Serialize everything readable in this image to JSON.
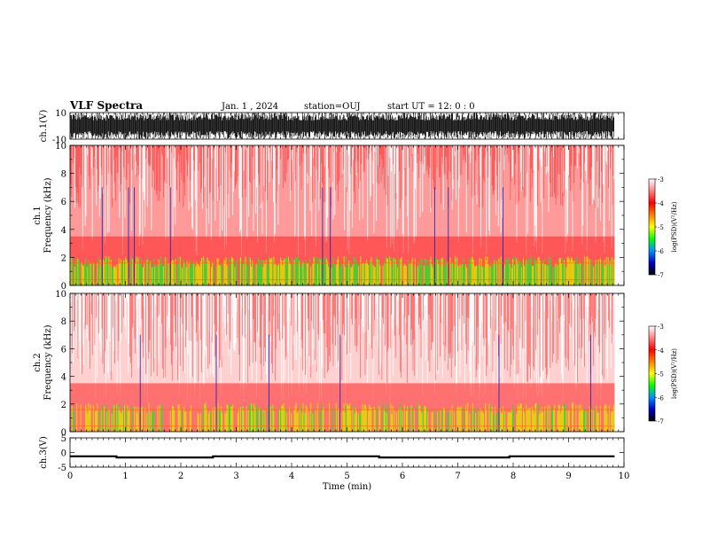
{
  "header": {
    "title": "VLF Spectra",
    "date": "Jan. 1 , 2024",
    "station": "station=OUJ",
    "start": "start UT =  12: 0 : 0"
  },
  "chart_data": [
    {
      "type": "line",
      "name": "waveform-ch1",
      "ylabel": "ch.1(V)",
      "ylim": [
        -10,
        10
      ],
      "yticks": [
        "10",
        "-10"
      ],
      "xlim": [
        0,
        10
      ],
      "description_level": "dense oscillation spanning most of range"
    },
    {
      "type": "heatmap",
      "name": "spectrogram-ch1",
      "ylabel": "ch.1\nFrequency (kHz)",
      "ylabel_line1": "ch.1",
      "ylabel_line2": "Frequency (kHz)",
      "ylim": [
        0,
        10
      ],
      "yticks": [
        "0",
        "2",
        "4",
        "6",
        "8",
        "10"
      ],
      "xlim": [
        0,
        10
      ],
      "data_end_min": 9.83,
      "colorbar": {
        "label": "log(PSD)(V²/Hz)",
        "range": [
          -7,
          -3
        ],
        "ticks": [
          "-3",
          "-4",
          "-5",
          "-6",
          "-7"
        ],
        "colors": [
          "#000000",
          "#0000c8",
          "#0090ff",
          "#00ff00",
          "#ffff00",
          "#ff8000",
          "#ff0000",
          "#ff8080",
          "#ffffff"
        ]
      },
      "band_kHz": [
        0,
        2
      ]
    },
    {
      "type": "heatmap",
      "name": "spectrogram-ch2",
      "ylabel_line1": "ch.2",
      "ylabel_line2": "Frequency (kHz)",
      "ylim": [
        0,
        10
      ],
      "yticks": [
        "0",
        "2",
        "4",
        "6",
        "8",
        "10"
      ],
      "xlim": [
        0,
        10
      ],
      "data_end_min": 9.83,
      "colorbar": {
        "label": "log(PSD)(V²/Hz)",
        "range": [
          -7,
          -3
        ],
        "ticks": [
          "-3",
          "-4",
          "-5",
          "-6",
          "-7"
        ]
      },
      "band_kHz": [
        0,
        2
      ]
    },
    {
      "type": "line",
      "name": "ch3",
      "ylabel": "ch.3(V)",
      "ylim": [
        -5,
        5
      ],
      "yticks": [
        "5",
        "0",
        "-5"
      ],
      "xlim": [
        0,
        10
      ],
      "xlabel": "Time (min)",
      "xticks": [
        "0",
        "1",
        "2",
        "3",
        "4",
        "5",
        "6",
        "7",
        "8",
        "9",
        "10"
      ],
      "x": [
        0,
        0.84,
        0.84,
        2.58,
        2.58,
        5.58,
        5.58,
        7.93,
        7.93,
        9.83
      ],
      "y": [
        -1.3,
        -1.3,
        -1.7,
        -1.7,
        -1.3,
        -1.3,
        -1.7,
        -1.7,
        -1.3,
        -1.3
      ]
    }
  ]
}
